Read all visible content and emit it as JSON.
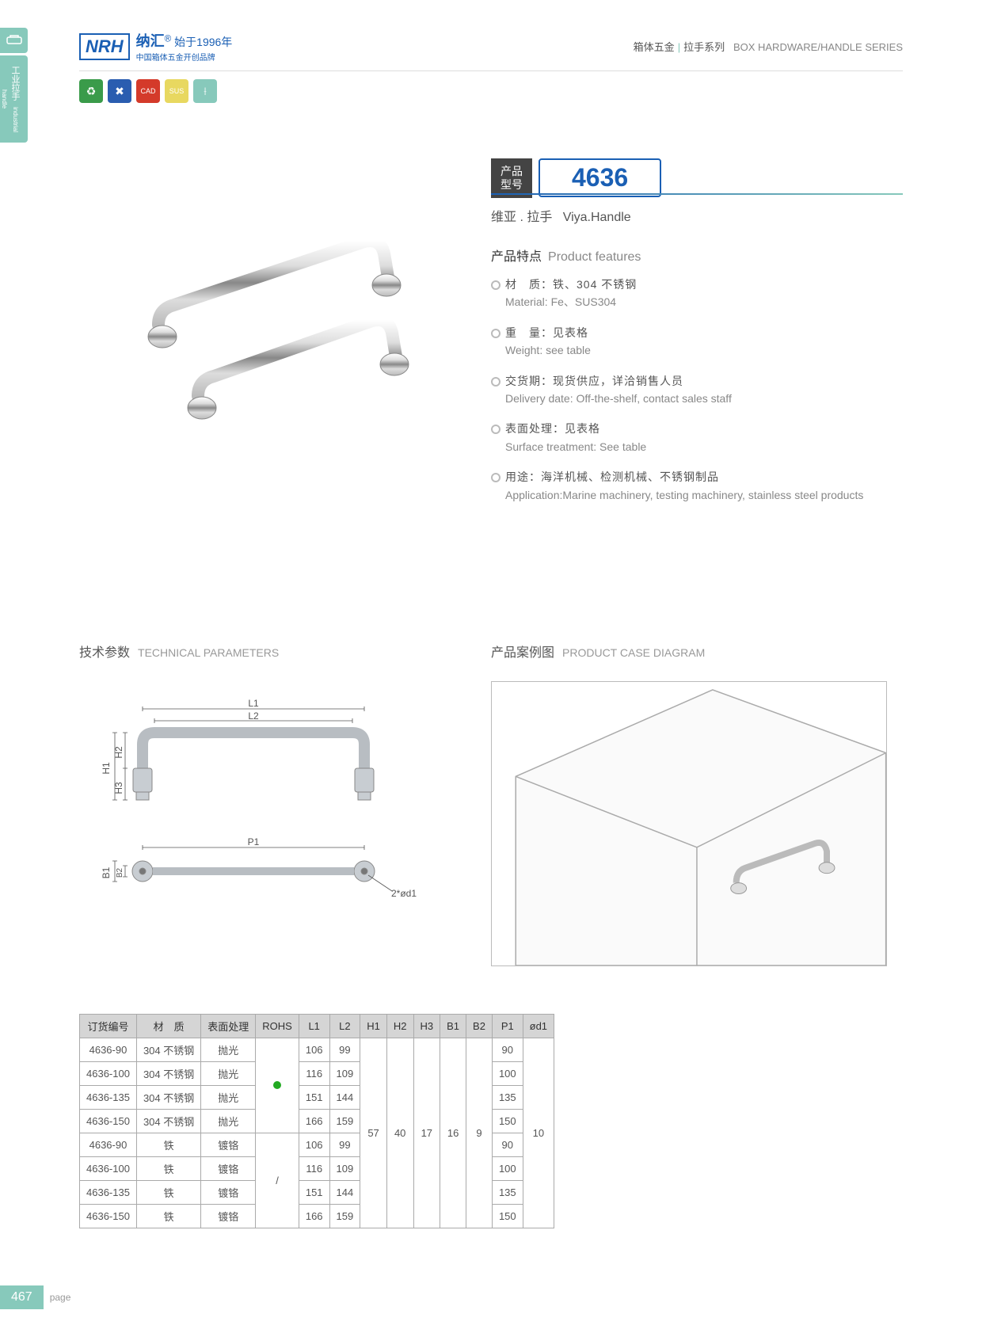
{
  "sideTab": {
    "cn": "工业拉手",
    "en": "industrial handle"
  },
  "logo": {
    "brand": "NRH",
    "title": "纳汇",
    "trademark": "®",
    "year": "始于1996年",
    "subtitle": "中国箱体五金开创品牌"
  },
  "headerRight": {
    "cn": "箱体五金",
    "series": "拉手系列",
    "en": "BOX HARDWARE/HANDLE SERIES"
  },
  "iconBadges": [
    {
      "color": "#3a9b4a",
      "symbol": "♻"
    },
    {
      "color": "#2a5db0",
      "symbol": "✖"
    },
    {
      "color": "#d43a2a",
      "symbol": "CAD"
    },
    {
      "color": "#e8d860",
      "symbol": "SUS"
    },
    {
      "color": "#87c9bb",
      "symbol": "⟊"
    }
  ],
  "model": {
    "label": "产品\n型号",
    "number": "4636"
  },
  "productName": {
    "cn": "维亚 . 拉手",
    "en": "Viya.Handle"
  },
  "featuresTitle": {
    "cn": "产品特点",
    "en": "Product features"
  },
  "features": [
    {
      "cn": "材　质：铁、304 不锈钢",
      "en": "Material: Fe、SUS304"
    },
    {
      "cn": "重　量：见表格",
      "en": "Weight: see table"
    },
    {
      "cn": "交货期：现货供应，详洽销售人员",
      "en": "Delivery date: Off-the-shelf, contact sales staff"
    },
    {
      "cn": "表面处理：见表格",
      "en": "Surface treatment: See table"
    },
    {
      "cn": "用途：海洋机械、检测机械、不锈钢制品",
      "en": "Application:Marine machinery, testing machinery, stainless steel products"
    }
  ],
  "techTitle": {
    "cn": "技术参数",
    "en": "TECHNICAL PARAMETERS"
  },
  "caseTitle": {
    "cn": "产品案例图",
    "en": "PRODUCT CASE DIAGRAM"
  },
  "diagram": {
    "labels": [
      "L1",
      "L2",
      "H1",
      "H2",
      "H3",
      "P1",
      "B1",
      "B2",
      "2*ød1"
    ]
  },
  "table": {
    "headers": [
      "订货编号",
      "材　质",
      "表面处理",
      "ROHS",
      "L1",
      "L2",
      "H1",
      "H2",
      "H3",
      "B1",
      "B2",
      "P1",
      "ød1"
    ],
    "rohsGroups": [
      {
        "span": 4,
        "val": "dot"
      },
      {
        "span": 4,
        "val": "/"
      }
    ],
    "mergedCols": {
      "H1": "57",
      "H2": "40",
      "H3": "17",
      "B1": "16",
      "B2": "9",
      "od1": "10"
    },
    "rows": [
      {
        "code": "4636-90",
        "mat": "304 不锈钢",
        "surf": "抛光",
        "L1": "106",
        "L2": "99",
        "P1": "90"
      },
      {
        "code": "4636-100",
        "mat": "304 不锈钢",
        "surf": "抛光",
        "L1": "116",
        "L2": "109",
        "P1": "100"
      },
      {
        "code": "4636-135",
        "mat": "304 不锈钢",
        "surf": "抛光",
        "L1": "151",
        "L2": "144",
        "P1": "135"
      },
      {
        "code": "4636-150",
        "mat": "304 不锈钢",
        "surf": "抛光",
        "L1": "166",
        "L2": "159",
        "P1": "150"
      },
      {
        "code": "4636-90",
        "mat": "铁",
        "surf": "镀铬",
        "L1": "106",
        "L2": "99",
        "P1": "90"
      },
      {
        "code": "4636-100",
        "mat": "铁",
        "surf": "镀铬",
        "L1": "116",
        "L2": "109",
        "P1": "100"
      },
      {
        "code": "4636-135",
        "mat": "铁",
        "surf": "镀铬",
        "L1": "151",
        "L2": "144",
        "P1": "135"
      },
      {
        "code": "4636-150",
        "mat": "铁",
        "surf": "镀铬",
        "L1": "166",
        "L2": "159",
        "P1": "150"
      }
    ]
  },
  "footer": {
    "page": "467",
    "label": "page"
  }
}
